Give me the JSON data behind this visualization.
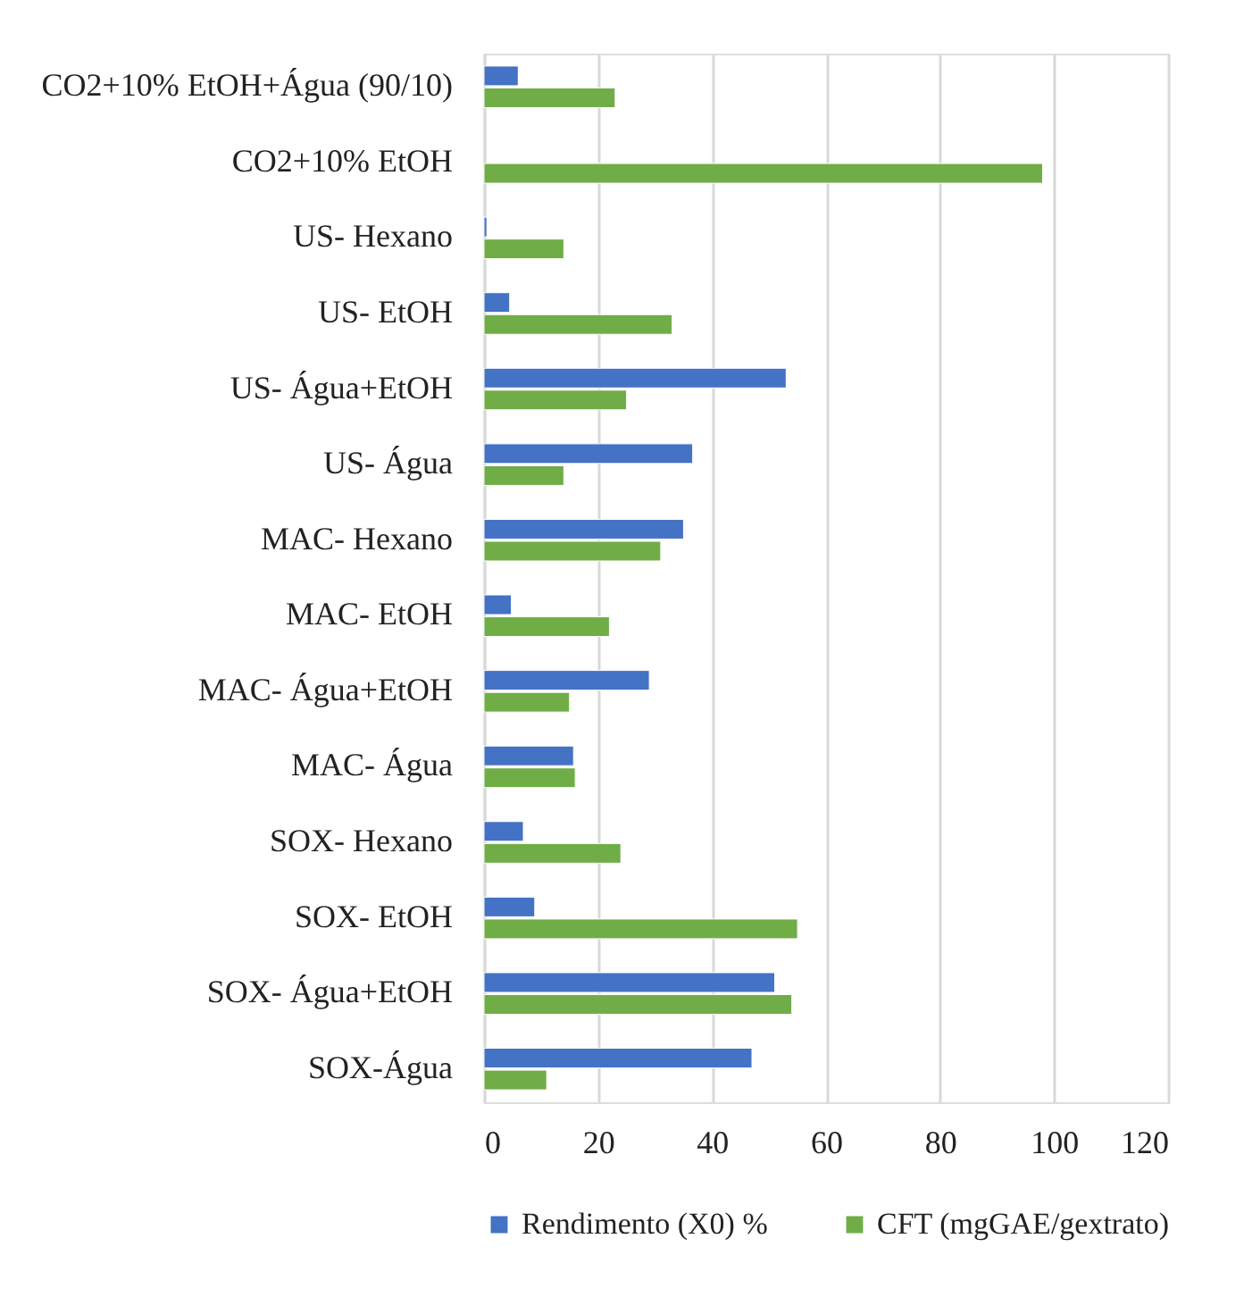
{
  "chart_data": {
    "type": "bar",
    "orientation": "horizontal",
    "categories": [
      "CO2+10% EtOH+Água (90/10)",
      "CO2+10% EtOH",
      "US- Hexano",
      "US- EtOH",
      "US- Água+EtOH",
      "US- Água",
      "MAC- Hexano",
      "MAC- EtOH",
      "MAC- Água+EtOH",
      "MAC- Água",
      "SOX- Hexano",
      "SOX- EtOH",
      "SOX- Água+EtOH",
      "SOX-Água"
    ],
    "series": [
      {
        "name": "Rendimento (X0) %",
        "color": "#4472c4",
        "values": [
          6,
          null,
          0.5,
          4.5,
          53,
          36.6,
          35,
          4.8,
          29,
          15.7,
          6.9,
          8.9,
          51,
          47
        ]
      },
      {
        "name": "CFT (mgGAE/gextrato)",
        "color": "#70ad47",
        "values": [
          23,
          98,
          14,
          33,
          25,
          14,
          31,
          22,
          15,
          16,
          24,
          55,
          54,
          11
        ]
      }
    ],
    "xlim": [
      0,
      120
    ],
    "xticks": [
      0,
      20,
      40,
      60,
      80,
      100,
      120
    ],
    "grid": "x",
    "legend": "bottom"
  }
}
